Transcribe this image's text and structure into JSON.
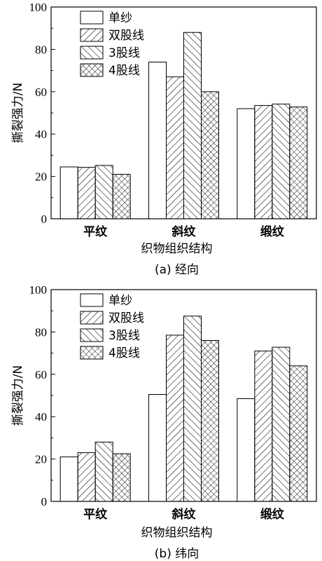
{
  "chart_data": [
    {
      "type": "bar",
      "caption": "(a) 经向",
      "xlabel": "织物组织结构",
      "ylabel": "撕裂强力/N",
      "ylim": [
        0,
        100
      ],
      "yticks": [
        0,
        20,
        40,
        60,
        80,
        100
      ],
      "categories": [
        "平纹",
        "斜纹",
        "缎纹"
      ],
      "legend_position": "top-left",
      "series": [
        {
          "name": "单纱",
          "pattern": "none",
          "values": [
            24.5,
            74,
            52
          ]
        },
        {
          "name": "双股线",
          "pattern": "forward-diagonal",
          "values": [
            24.3,
            67,
            53.5
          ]
        },
        {
          "name": "3股线",
          "pattern": "backward-diagonal",
          "values": [
            25.2,
            88,
            54.2
          ]
        },
        {
          "name": "4股线",
          "pattern": "crosshatch",
          "values": [
            21,
            60,
            52.8
          ]
        }
      ]
    },
    {
      "type": "bar",
      "caption": "(b) 纬向",
      "xlabel": "织物组织结构",
      "ylabel": "撕裂强力/N",
      "ylim": [
        0,
        100
      ],
      "yticks": [
        0,
        20,
        40,
        60,
        80,
        100
      ],
      "categories": [
        "平纹",
        "斜纹",
        "缎纹"
      ],
      "legend_position": "top-left",
      "series": [
        {
          "name": "单纱",
          "pattern": "none",
          "values": [
            21,
            50.5,
            48.5
          ]
        },
        {
          "name": "双股线",
          "pattern": "forward-diagonal",
          "values": [
            23,
            78.5,
            71
          ]
        },
        {
          "name": "3股线",
          "pattern": "backward-diagonal",
          "values": [
            28,
            87.5,
            72.8
          ]
        },
        {
          "name": "4股线",
          "pattern": "crosshatch",
          "values": [
            22.5,
            76,
            64
          ]
        }
      ]
    }
  ]
}
